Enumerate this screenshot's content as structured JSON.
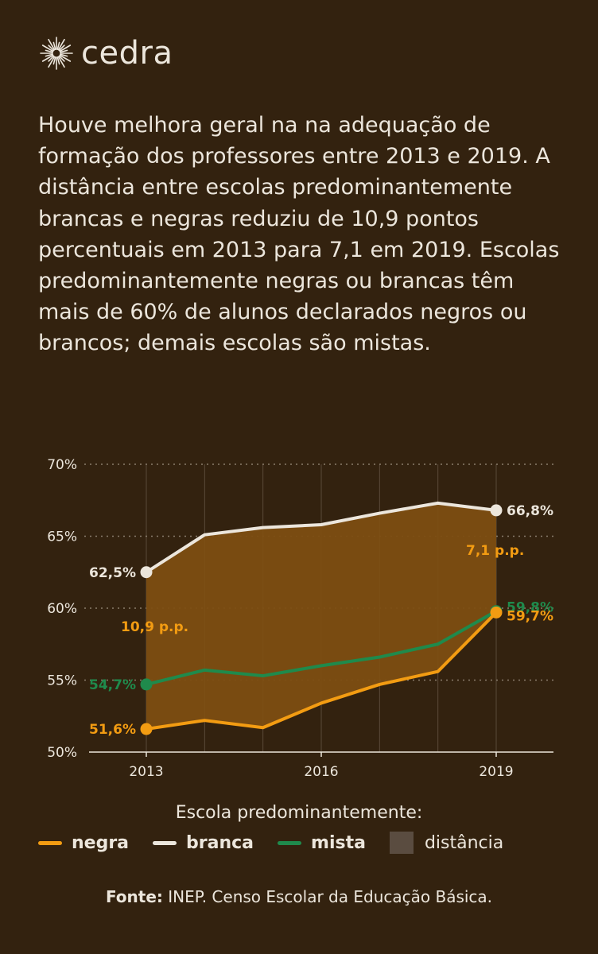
{
  "brand": {
    "name": "cedra"
  },
  "intro_text": "Houve melhora geral na na adequação de formação dos professores entre 2013 e 2019. A distância entre escolas predominantemente brancas e negras reduziu de 10,9 pontos percentuais em 2013 para 7,1 em 2019. Escolas predominantemente negras ou brancas têm mais de 60% de alunos declarados negros ou brancos; demais escolas são mistas.",
  "chart_data": {
    "type": "line",
    "x": [
      2013,
      2014,
      2015,
      2016,
      2017,
      2018,
      2019
    ],
    "x_ticks": [
      2013,
      2016,
      2019
    ],
    "y_ticks": [
      50,
      55,
      60,
      65,
      70
    ],
    "ylim": [
      50,
      70
    ],
    "y_tick_suffix": "%",
    "grid": true,
    "series": [
      {
        "key": "branca",
        "name": "branca",
        "color": "#ece6dc",
        "values": [
          62.5,
          65.1,
          65.6,
          65.8,
          66.6,
          67.3,
          66.8
        ]
      },
      {
        "key": "mista",
        "name": "mista",
        "color": "#1f8a4c",
        "values": [
          54.7,
          55.7,
          55.3,
          56.0,
          56.6,
          57.5,
          59.8
        ]
      },
      {
        "key": "negra",
        "name": "negra",
        "color": "#f39c12",
        "values": [
          51.6,
          52.2,
          51.7,
          53.4,
          54.7,
          55.6,
          59.7
        ]
      }
    ],
    "endpoint_labels": {
      "branca": [
        "62,5%",
        "66,8%"
      ],
      "mista": [
        "54,7%",
        "59,8%"
      ],
      "negra": [
        "51,6%",
        "59,7%"
      ]
    },
    "gap_fill_color": "#7d4e12",
    "annotations": [
      "10,9 p.p.",
      "7,1 p.p."
    ]
  },
  "legend": {
    "title": "Escola predominantemente:",
    "items": [
      {
        "label": "negra",
        "color": "#f39c12"
      },
      {
        "label": "branca",
        "color": "#ece6dc"
      },
      {
        "label": "mista",
        "color": "#1f8a4c"
      },
      {
        "label": "distância",
        "color": "#5a4c40"
      }
    ]
  },
  "source": {
    "label": "Fonte:",
    "text": " INEP. Censo Escolar da Educação Básica."
  }
}
